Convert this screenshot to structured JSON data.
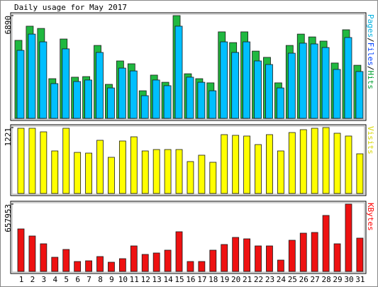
{
  "title": "Daily usage for May 2017",
  "chart_data": [
    {
      "type": "bar",
      "ylim": [
        0,
        6890
      ],
      "yticks": [
        6890
      ],
      "legend": [
        {
          "text": "Pages",
          "color": "#00b0e0"
        },
        {
          "text": "/",
          "color": "#000000"
        },
        {
          "text": "Files",
          "color": "#0040ff"
        },
        {
          "text": "/",
          "color": "#000000"
        },
        {
          "text": "Hits",
          "color": "#00a030"
        }
      ],
      "series": [
        {
          "color": "#20b840",
          "values": [
            5230,
            6180,
            6030,
            2660,
            5320,
            2760,
            2800,
            4890,
            2280,
            3850,
            3660,
            1850,
            2900,
            2420,
            6890,
            2990,
            2660,
            2380,
            5800,
            5080,
            5800,
            4510,
            4090,
            2380,
            4890,
            5650,
            5460,
            5180,
            3710,
            5940,
            3560
          ]
        },
        {
          "color": "#00bfff",
          "values": [
            4560,
            5650,
            5130,
            2330,
            4660,
            2470,
            2570,
            4420,
            2040,
            3370,
            3180,
            1520,
            2570,
            2190,
            6180,
            2760,
            2420,
            1850,
            5130,
            4420,
            5130,
            3850,
            3610,
            2040,
            4370,
            5040,
            4990,
            4750,
            3280,
            5420,
            3140
          ]
        }
      ]
    },
    {
      "type": "bar",
      "ylim": [
        0,
        1221
      ],
      "yticks": [
        1221
      ],
      "legend": [
        {
          "text": "Visits",
          "color": "#d8d800"
        }
      ],
      "series": [
        {
          "color": "#ffff00",
          "values": [
            1208,
            1208,
            1142,
            788,
            1208,
            761,
            748,
            985,
            670,
            972,
            1050,
            788,
            814,
            814,
            814,
            591,
            709,
            578,
            1090,
            1077,
            1064,
            906,
            1090,
            788,
            1129,
            1182,
            1208,
            1221,
            1116,
            1064,
            735
          ]
        }
      ]
    },
    {
      "type": "bar",
      "ylim": [
        0,
        657953
      ],
      "yticks": [
        657953
      ],
      "legend": [
        {
          "text": "KBytes",
          "color": "#ff0000"
        }
      ],
      "categories": [
        "1",
        "2",
        "3",
        "4",
        "5",
        "6",
        "7",
        "8",
        "9",
        "10",
        "11",
        "12",
        "13",
        "14",
        "15",
        "16",
        "17",
        "18",
        "19",
        "20",
        "21",
        "22",
        "23",
        "24",
        "25",
        "26",
        "27",
        "28",
        "29",
        "30",
        "31"
      ],
      "category_colors": [
        "#000000",
        "#000000",
        "#000000",
        "#000000",
        "#000000",
        "#00a030",
        "#00a030",
        "#000000",
        "#000000",
        "#000000",
        "#000000",
        "#000000",
        "#00a030",
        "#00a030",
        "#000000",
        "#000000",
        "#000000",
        "#000000",
        "#000000",
        "#00a030",
        "#00a030",
        "#000000",
        "#000000",
        "#000000",
        "#000000",
        "#000000",
        "#00a030",
        "#00a030",
        "#000000",
        "#000000",
        "#000000"
      ],
      "series": [
        {
          "color": "#ee1111",
          "values": [
            415560,
            346300,
            270110,
            138520,
            214710,
            96960,
            103890,
            145450,
            90040,
            124670,
            249340,
            166220,
            180080,
            207780,
            387860,
            96960,
            96960,
            207780,
            263190,
            332450,
            318600,
            249340,
            249340,
            110820,
            304740,
            374000,
            380930,
            547150,
            270110,
            657953,
            325520
          ]
        }
      ]
    }
  ]
}
